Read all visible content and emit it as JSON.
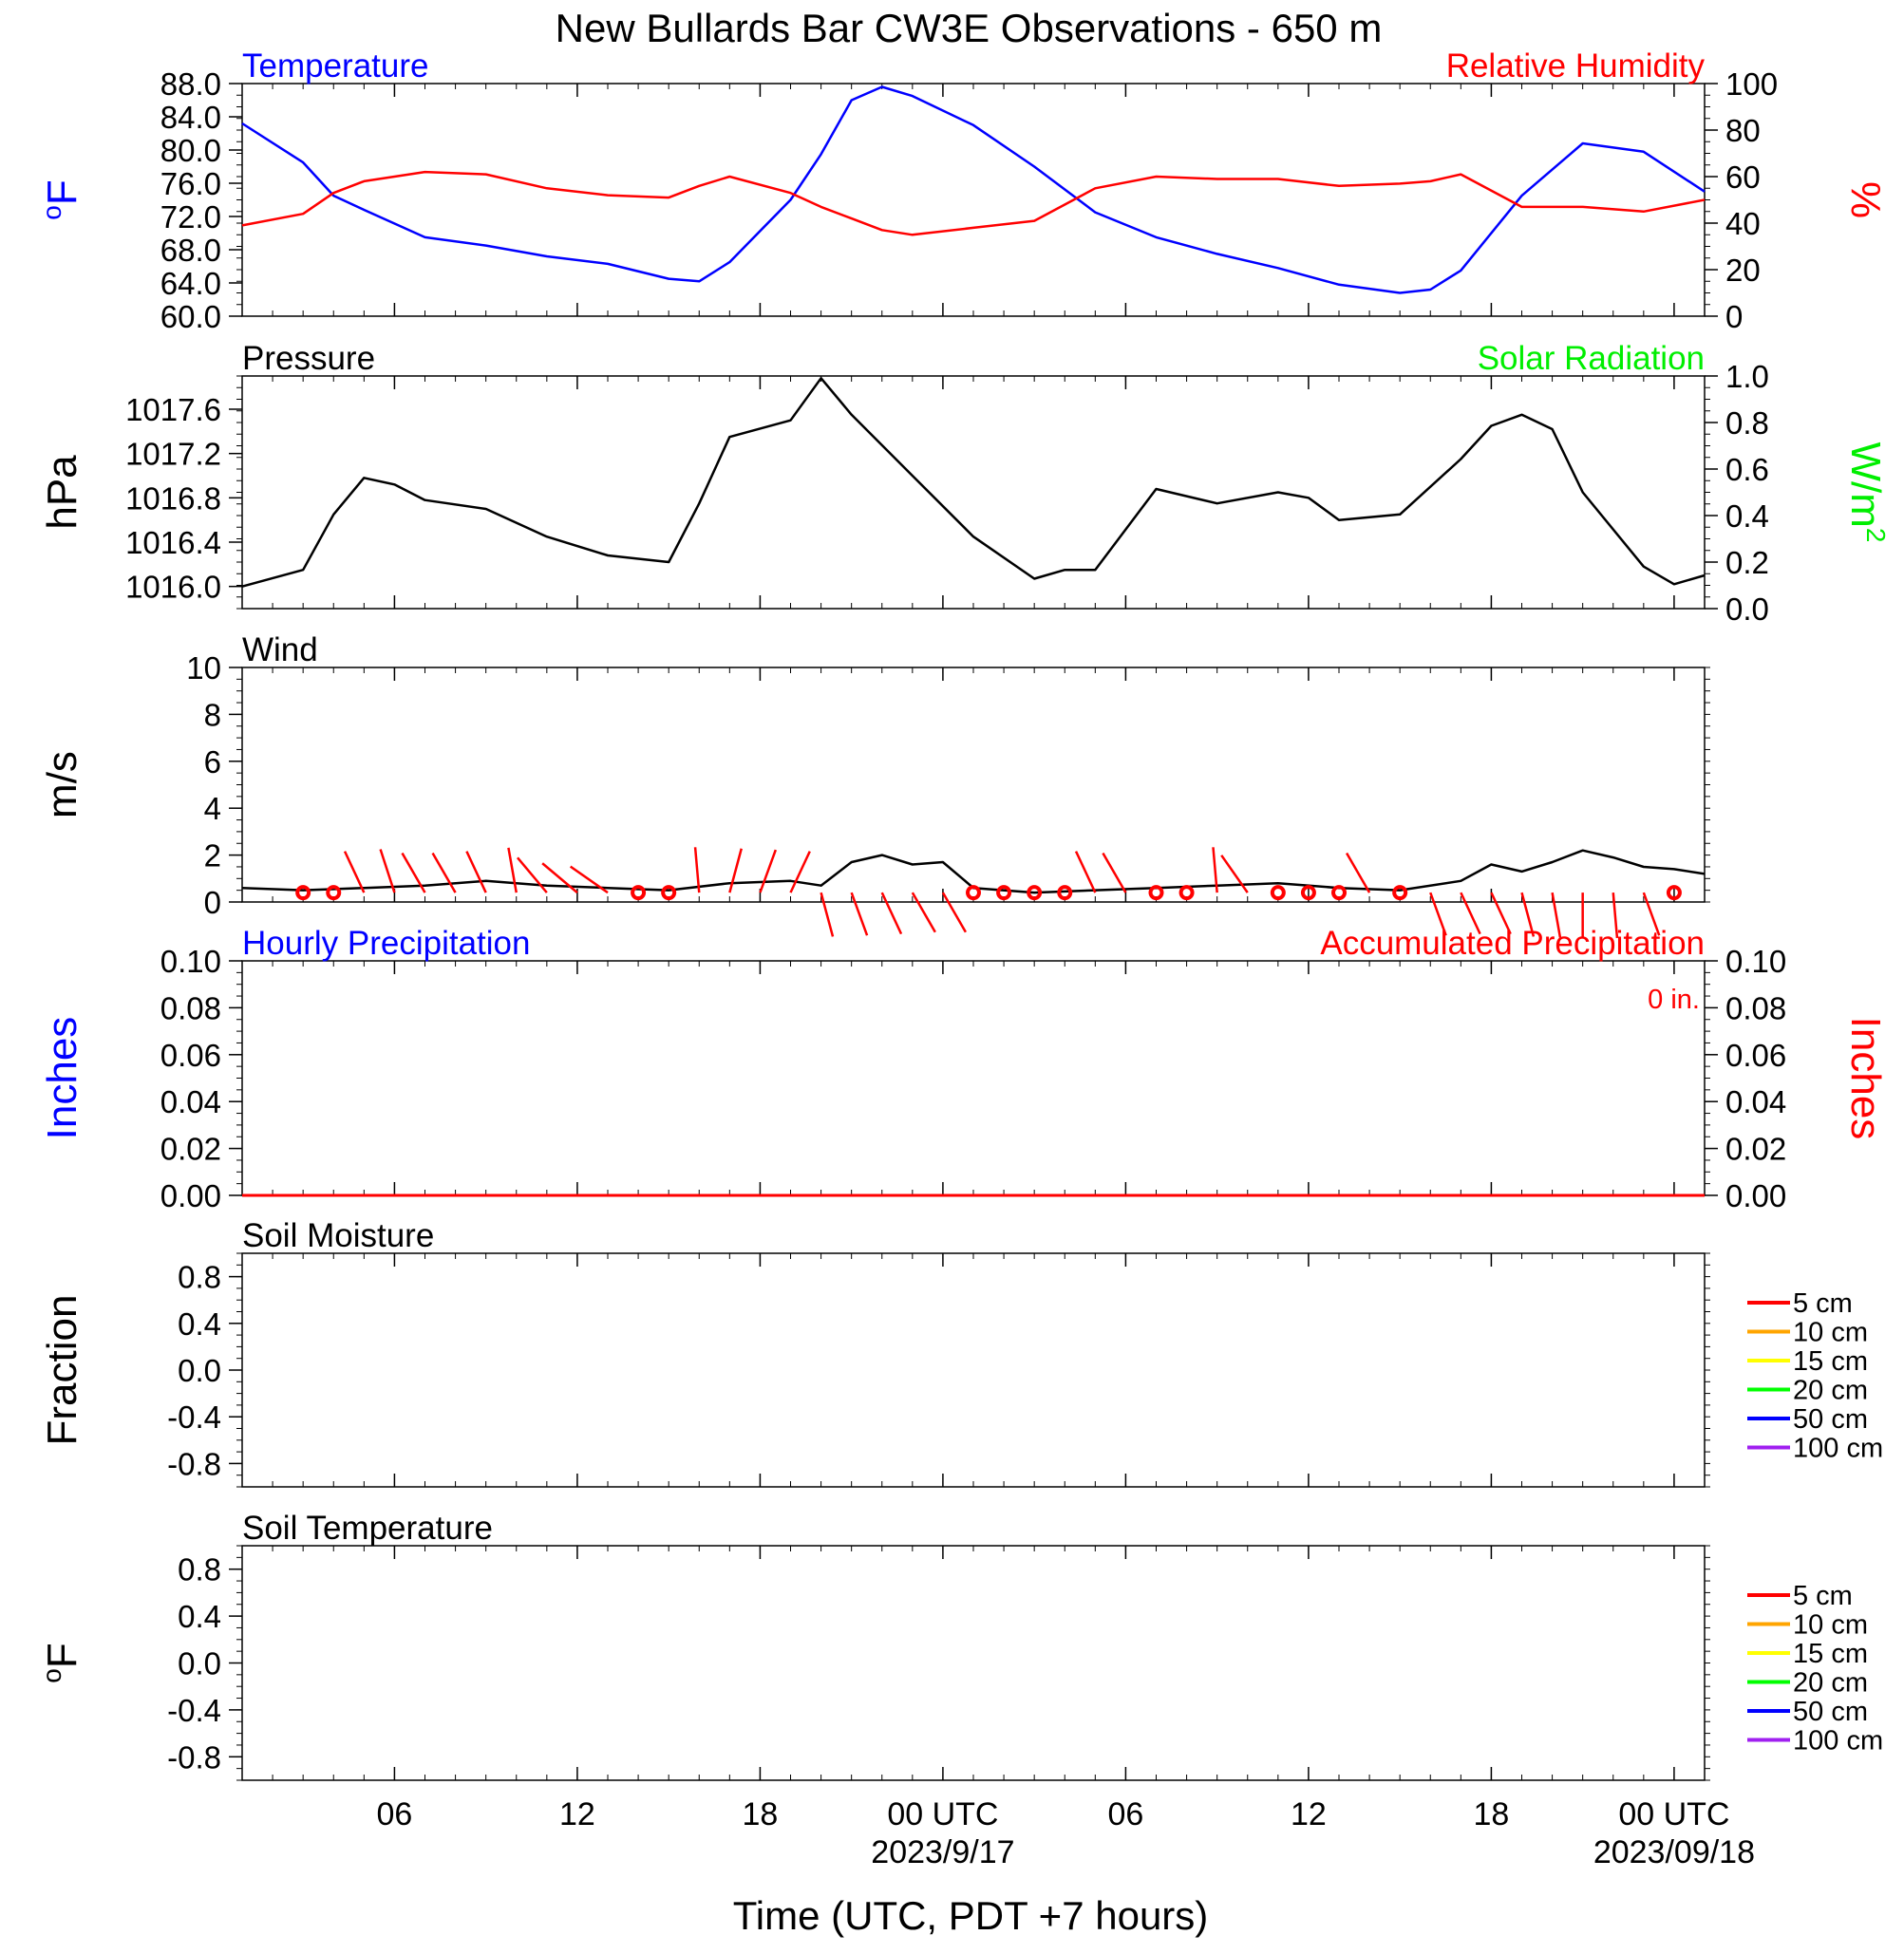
{
  "chart_data": [
    {
      "panel": "temperature_rh",
      "type": "line",
      "title": "New Bullards Bar CW3E Observations - 650 m",
      "subtitle_left": "Temperature",
      "subtitle_right": "Relative Humidity",
      "ylabel_left": "oF",
      "ylabel_right": "%",
      "ylim_left": [
        60,
        88
      ],
      "yticks_left": [
        "88.0",
        "84.0",
        "80.0",
        "76.0",
        "72.0",
        "68.0",
        "64.0",
        "60.0"
      ],
      "ylim_right": [
        0,
        100
      ],
      "yticks_right": [
        "100",
        "80",
        "60",
        "40",
        "20",
        "0"
      ],
      "x_hours": [
        0,
        2,
        3,
        4,
        6,
        8,
        10,
        12,
        14,
        15,
        16,
        18,
        19,
        20,
        21,
        22,
        24,
        26,
        28,
        30,
        32,
        34,
        36,
        38,
        39,
        40,
        42,
        44,
        46,
        48
      ],
      "series": [
        {
          "name": "Temperature",
          "color": "#0000ff",
          "axis": "left",
          "values": [
            83.2,
            78.5,
            74.5,
            72.8,
            69.5,
            68.5,
            67.2,
            66.3,
            64.5,
            64.2,
            66.5,
            74.0,
            79.5,
            86.0,
            87.6,
            86.5,
            83.0,
            78.0,
            72.5,
            69.5,
            67.5,
            65.8,
            63.8,
            62.8,
            63.2,
            65.5,
            74.5,
            80.8,
            79.8,
            75.0
          ]
        },
        {
          "name": "Relative Humidity",
          "color": "#ff0000",
          "axis": "right",
          "values": [
            39,
            44,
            53,
            58,
            62,
            61,
            55,
            52,
            51,
            56,
            60,
            53,
            47,
            42,
            37,
            35,
            38,
            41,
            55,
            60,
            59,
            59,
            56,
            57,
            58,
            61,
            47,
            47,
            45,
            50
          ]
        }
      ]
    },
    {
      "panel": "pressure",
      "type": "line",
      "subtitle_left": "Pressure",
      "subtitle_right": "Solar Radiation",
      "ylabel_left": "hPa",
      "ylabel_right": "W/m2",
      "ylim_left": [
        1015.8,
        1017.9
      ],
      "yticks_left": [
        "1017.6",
        "1017.2",
        "1016.8",
        "1016.4",
        "1016.0"
      ],
      "ylim_right": [
        0,
        1
      ],
      "yticks_right": [
        "1.0",
        "0.8",
        "0.6",
        "0.4",
        "0.2",
        "0.0"
      ],
      "x_hours": [
        0,
        2,
        3,
        4,
        5,
        6,
        8,
        10,
        12,
        14,
        15,
        16,
        18,
        19,
        20,
        22,
        24,
        26,
        27,
        28,
        30,
        32,
        34,
        35,
        36,
        38,
        40,
        41,
        42,
        43,
        44,
        46,
        47,
        48
      ],
      "series": [
        {
          "name": "Pressure",
          "color": "#000000",
          "axis": "left",
          "values": [
            1016.0,
            1016.15,
            1016.65,
            1016.98,
            1016.92,
            1016.78,
            1016.7,
            1016.45,
            1016.28,
            1016.22,
            1016.75,
            1017.35,
            1017.5,
            1017.88,
            1017.55,
            1017.0,
            1016.45,
            1016.07,
            1016.15,
            1016.15,
            1016.88,
            1016.75,
            1016.85,
            1016.8,
            1016.6,
            1016.65,
            1017.15,
            1017.45,
            1017.55,
            1017.42,
            1016.85,
            1016.18,
            1016.02,
            1016.1
          ]
        }
      ]
    },
    {
      "panel": "wind",
      "type": "line",
      "subtitle_left": "Wind",
      "ylabel_left": "m/s",
      "ylim_left": [
        0,
        10
      ],
      "yticks_left": [
        "10",
        "8",
        "6",
        "4",
        "2",
        "0"
      ],
      "x_hours": [
        0,
        2,
        4,
        6,
        8,
        10,
        12,
        14,
        16,
        18,
        19,
        20,
        21,
        22,
        23,
        24,
        26,
        28,
        30,
        32,
        34,
        36,
        38,
        40,
        41,
        42,
        43,
        44,
        45,
        46,
        47,
        48
      ],
      "series": [
        {
          "name": "Wind speed",
          "color": "#000000",
          "axis": "left",
          "values": [
            0.6,
            0.5,
            0.6,
            0.7,
            0.9,
            0.7,
            0.6,
            0.5,
            0.8,
            0.9,
            0.7,
            1.7,
            2.0,
            1.6,
            1.7,
            0.6,
            0.4,
            0.5,
            0.6,
            0.7,
            0.8,
            0.6,
            0.5,
            0.9,
            1.6,
            1.3,
            1.7,
            2.2,
            1.9,
            1.5,
            1.4,
            1.2
          ]
        }
      ],
      "barb_hours": [
        2,
        3,
        4,
        5,
        6,
        7,
        8,
        9,
        10,
        11,
        12,
        13,
        14,
        15,
        16,
        17,
        18,
        19,
        20,
        21,
        22,
        23,
        24,
        25,
        26,
        27,
        28,
        29,
        30,
        31,
        32,
        33,
        34,
        35,
        36,
        37,
        38,
        39,
        40,
        41,
        42,
        43,
        44,
        45,
        46,
        47
      ],
      "barb_types": [
        "calm",
        "calm",
        "barb",
        "barb",
        "barb",
        "barb",
        "barb",
        "barb",
        "barb",
        "barb",
        "barb",
        "calm",
        "calm",
        "barb",
        "barb",
        "barb",
        "barb",
        "barb",
        "barb",
        "barb",
        "barb",
        "barb",
        "calm",
        "calm",
        "calm",
        "calm",
        "barb",
        "barb",
        "calm",
        "calm",
        "barb",
        "barb",
        "calm",
        "calm",
        "calm",
        "barb",
        "calm",
        "barb",
        "barb",
        "barb",
        "barb",
        "barb",
        "barb",
        "barb",
        "barb",
        "calm"
      ],
      "barb_angles": [
        0,
        0,
        -25,
        -18,
        -30,
        -30,
        -25,
        -10,
        -40,
        -50,
        -55,
        0,
        0,
        -5,
        15,
        20,
        25,
        165,
        160,
        155,
        150,
        150,
        0,
        0,
        0,
        0,
        -25,
        -30,
        0,
        0,
        -5,
        -35,
        0,
        0,
        0,
        -30,
        0,
        160,
        155,
        155,
        165,
        170,
        180,
        175,
        160,
        0
      ]
    },
    {
      "panel": "precipitation",
      "type": "line",
      "subtitle_left": "Hourly Precipitation",
      "subtitle_right": "Accumulated Precipitation",
      "accumulated_total": "0 in.",
      "ylabel_left": "Inches",
      "ylabel_right": "Inches",
      "ylim_left": [
        0,
        0.1
      ],
      "yticks_left": [
        "0.10",
        "0.08",
        "0.06",
        "0.04",
        "0.02",
        "0.00"
      ],
      "ylim_right": [
        0,
        0.1
      ],
      "yticks_right": [
        "0.10",
        "0.08",
        "0.06",
        "0.04",
        "0.02",
        "0.00"
      ],
      "x_hours": [
        0,
        48
      ],
      "series": [
        {
          "name": "Hourly Precipitation",
          "color": "#0000ff",
          "axis": "left",
          "values": [
            0,
            0
          ]
        },
        {
          "name": "Accumulated Precipitation",
          "color": "#ff0000",
          "axis": "right",
          "values": [
            0,
            0
          ]
        }
      ]
    },
    {
      "panel": "soil_moisture",
      "type": "line",
      "subtitle_left": "Soil Moisture",
      "ylabel_left": "Fraction",
      "ylim_left": [
        -1,
        1
      ],
      "yticks_left": [
        "0.8",
        "0.4",
        "0.0",
        "-0.4",
        "-0.8"
      ],
      "legend": [
        {
          "label": "5 cm",
          "color": "#ff0000"
        },
        {
          "label": "10 cm",
          "color": "#ffa500"
        },
        {
          "label": "15 cm",
          "color": "#ffff00"
        },
        {
          "label": "20 cm",
          "color": "#00ff00"
        },
        {
          "label": "50 cm",
          "color": "#0000ff"
        },
        {
          "label": "100 cm",
          "color": "#a020f0"
        }
      ],
      "series": []
    },
    {
      "panel": "soil_temperature",
      "type": "line",
      "subtitle_left": "Soil Temperature",
      "ylabel_left": "oF",
      "ylim_left": [
        -1,
        1
      ],
      "yticks_left": [
        "0.8",
        "0.4",
        "0.0",
        "-0.4",
        "-0.8"
      ],
      "legend": [
        {
          "label": "5 cm",
          "color": "#ff0000"
        },
        {
          "label": "10 cm",
          "color": "#ffa500"
        },
        {
          "label": "15 cm",
          "color": "#ffff00"
        },
        {
          "label": "20 cm",
          "color": "#00ff00"
        },
        {
          "label": "50 cm",
          "color": "#0000ff"
        },
        {
          "label": "100 cm",
          "color": "#a020f0"
        }
      ],
      "series": []
    }
  ],
  "x_axis": {
    "label": "Time (UTC, PDT +7 hours)",
    "ticks": [
      {
        "hour": 5,
        "label": "06",
        "date": ""
      },
      {
        "hour": 11,
        "label": "12",
        "date": ""
      },
      {
        "hour": 17,
        "label": "18",
        "date": ""
      },
      {
        "hour": 23,
        "label": "00 UTC",
        "date": "2023/9/17"
      },
      {
        "hour": 29,
        "label": "06",
        "date": ""
      },
      {
        "hour": 35,
        "label": "12",
        "date": ""
      },
      {
        "hour": 41,
        "label": "18",
        "date": ""
      },
      {
        "hour": 47,
        "label": "00 UTC",
        "date": "2023/09/18"
      }
    ],
    "range_hours": [
      0,
      48
    ]
  }
}
